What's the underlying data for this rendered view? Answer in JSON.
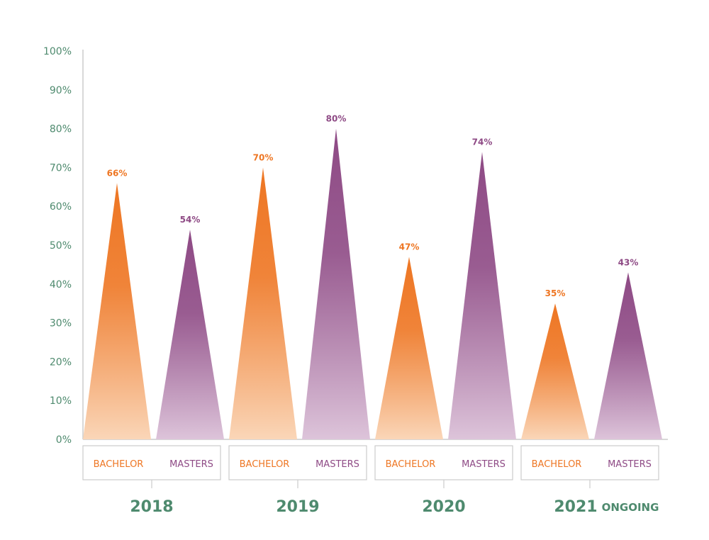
{
  "chart_data": {
    "type": "bar",
    "groups": [
      {
        "label": "2018",
        "sublabel": ""
      },
      {
        "label": "2019",
        "sublabel": ""
      },
      {
        "label": "2020",
        "sublabel": ""
      },
      {
        "label": "2021",
        "sublabel": "ONGOING"
      }
    ],
    "series": [
      {
        "name": "BACHELOR",
        "values": [
          66,
          70,
          47,
          35
        ],
        "labels": [
          "66%",
          "70%",
          "47%",
          "35%"
        ],
        "color": "#ee7623",
        "color_light": "#fad6b8"
      },
      {
        "name": "MASTERS",
        "values": [
          54,
          80,
          74,
          43
        ],
        "labels": [
          "54%",
          "80%",
          "74%",
          "43%"
        ],
        "color": "#8e4a85",
        "color_light": "#ddc4da"
      }
    ],
    "y_ticks": [
      "0%",
      "10%",
      "20%",
      "30%",
      "40%",
      "50%",
      "60%",
      "70%",
      "80%",
      "90%",
      "100%"
    ],
    "ylim": [
      0,
      100
    ],
    "title": "",
    "xlabel": "",
    "ylabel": "",
    "grid": false,
    "colors": {
      "axis": "#4e8a6e",
      "line": "#cccccc"
    }
  }
}
